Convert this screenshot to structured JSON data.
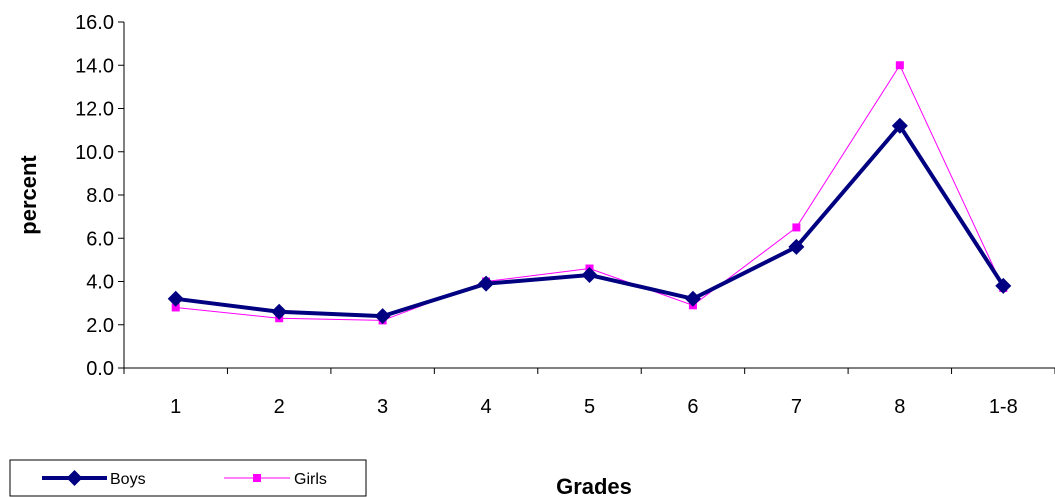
{
  "chart_data": {
    "type": "line",
    "title": "",
    "xlabel": "Grades",
    "ylabel": "percent",
    "categories": [
      "1",
      "2",
      "3",
      "4",
      "5",
      "6",
      "7",
      "8",
      "1-8"
    ],
    "ylim": [
      0,
      16
    ],
    "yticks": [
      "0.0",
      "2.0",
      "4.0",
      "6.0",
      "8.0",
      "10.0",
      "12.0",
      "14.0",
      "16.0"
    ],
    "grid": false,
    "legend_position": "bottom-left",
    "series": [
      {
        "name": "Boys",
        "color": "#000080",
        "marker": "diamond",
        "values": [
          3.2,
          2.6,
          2.4,
          3.9,
          4.3,
          3.2,
          5.6,
          11.2,
          3.8
        ]
      },
      {
        "name": "Girls",
        "color": "#FF00FF",
        "marker": "square",
        "values": [
          2.8,
          2.3,
          2.2,
          4.0,
          4.6,
          2.9,
          6.5,
          14.0,
          3.7
        ]
      }
    ]
  }
}
